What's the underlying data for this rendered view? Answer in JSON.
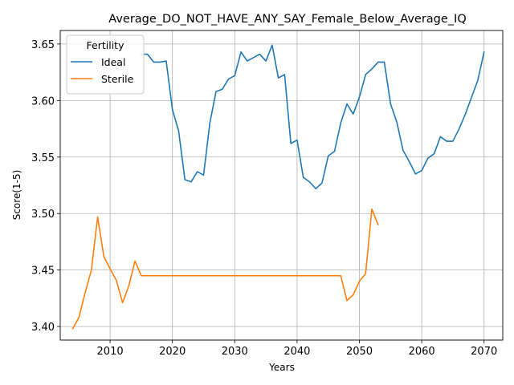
{
  "chart_data": {
    "type": "line",
    "title": "Average_DO_NOT_HAVE_ANY_SAY_Female_Below_Average_IQ",
    "xlabel": "Years",
    "ylabel": "Score(1-5)",
    "xlim": [
      2002,
      2073
    ],
    "ylim": [
      3.388,
      3.662
    ],
    "xticks": [
      2010,
      2020,
      2030,
      2040,
      2050,
      2060,
      2070
    ],
    "yticks": [
      3.4,
      3.45,
      3.5,
      3.55,
      3.6,
      3.65
    ],
    "ytick_labels": [
      "3.40",
      "3.45",
      "3.50",
      "3.55",
      "3.60",
      "3.65"
    ],
    "grid": true,
    "legend": {
      "title": "Fertility",
      "placement": "top-left"
    },
    "series": [
      {
        "name": "Ideal",
        "color": "#1f77b4",
        "x": [
          2015,
          2016,
          2017,
          2018,
          2019,
          2020,
          2021,
          2022,
          2023,
          2024,
          2025,
          2026,
          2027,
          2028,
          2029,
          2030,
          2031,
          2032,
          2033,
          2034,
          2035,
          2036,
          2037,
          2038,
          2039,
          2040,
          2041,
          2042,
          2043,
          2044,
          2045,
          2046,
          2047,
          2048,
          2049,
          2050,
          2051,
          2052,
          2053,
          2054,
          2055,
          2056,
          2057,
          2058,
          2059,
          2060,
          2061,
          2062,
          2063,
          2064,
          2065,
          2066,
          2067,
          2068,
          2069,
          2070
        ],
        "y": [
          3.641,
          3.641,
          3.634,
          3.634,
          3.635,
          3.592,
          3.573,
          3.53,
          3.528,
          3.537,
          3.534,
          3.58,
          3.608,
          3.61,
          3.619,
          3.622,
          3.643,
          3.635,
          3.638,
          3.641,
          3.635,
          3.649,
          3.62,
          3.623,
          3.562,
          3.565,
          3.532,
          3.528,
          3.522,
          3.527,
          3.551,
          3.555,
          3.58,
          3.597,
          3.588,
          3.603,
          3.623,
          3.628,
          3.634,
          3.634,
          3.597,
          3.581,
          3.556,
          3.546,
          3.535,
          3.538,
          3.549,
          3.553,
          3.568,
          3.564,
          3.564,
          3.575,
          3.588,
          3.603,
          3.618,
          3.643
        ]
      },
      {
        "name": "Sterile",
        "color": "#ff7f0e",
        "x": [
          2004,
          2005,
          2006,
          2007,
          2008,
          2009,
          2010,
          2011,
          2012,
          2013,
          2014,
          2015,
          2016,
          2017,
          2018,
          2019,
          2020,
          2021,
          2022,
          2023,
          2024,
          2025,
          2026,
          2027,
          2028,
          2029,
          2030,
          2031,
          2032,
          2033,
          2034,
          2035,
          2036,
          2037,
          2038,
          2039,
          2040,
          2041,
          2042,
          2043,
          2044,
          2045,
          2046,
          2047,
          2048,
          2049,
          2050,
          2051,
          2052,
          2053
        ],
        "y": [
          3.398,
          3.408,
          3.43,
          3.45,
          3.497,
          3.462,
          3.451,
          3.441,
          3.421,
          3.436,
          3.458,
          3.445,
          3.445,
          3.445,
          3.445,
          3.445,
          3.445,
          3.445,
          3.445,
          3.445,
          3.445,
          3.445,
          3.445,
          3.445,
          3.445,
          3.445,
          3.445,
          3.445,
          3.445,
          3.445,
          3.445,
          3.445,
          3.445,
          3.445,
          3.445,
          3.445,
          3.445,
          3.445,
          3.445,
          3.445,
          3.445,
          3.445,
          3.445,
          3.445,
          3.423,
          3.428,
          3.44,
          3.447,
          3.504,
          3.49
        ]
      }
    ]
  }
}
